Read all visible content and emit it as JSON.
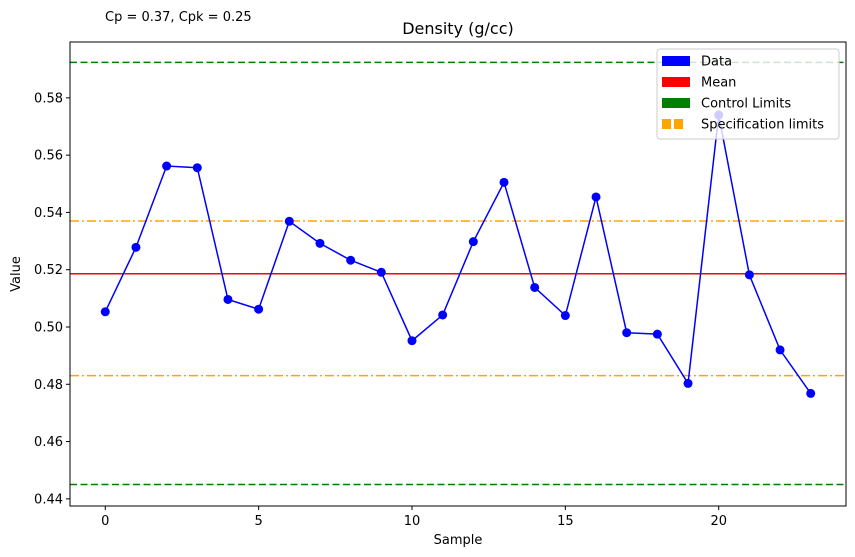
{
  "chart_data": {
    "type": "line",
    "title": "Density (g/cc)",
    "annotation": "Cp = 0.37, Cpk = 0.25",
    "xlabel": "Sample",
    "ylabel": "Value",
    "xlim": [
      -1.15,
      24.15
    ],
    "ylim": [
      0.4375,
      0.5995
    ],
    "xticks": [
      0,
      5,
      10,
      15,
      20
    ],
    "yticks": [
      0.44,
      0.46,
      0.48,
      0.5,
      0.52,
      0.54,
      0.56,
      0.58
    ],
    "ytick_labels": [
      "0.44",
      "0.46",
      "0.48",
      "0.50",
      "0.52",
      "0.54",
      "0.56",
      "0.58"
    ],
    "grid": false,
    "legend_position": "top-right",
    "x": [
      0,
      1,
      2,
      3,
      4,
      5,
      6,
      7,
      8,
      9,
      10,
      11,
      12,
      13,
      14,
      15,
      16,
      17,
      18,
      19,
      20,
      21,
      22,
      23
    ],
    "series": [
      {
        "name": "Data",
        "color": "#0000ff",
        "values": [
          0.5053,
          0.5278,
          0.5562,
          0.5556,
          0.5096,
          0.5062,
          0.5369,
          0.5292,
          0.5233,
          0.5191,
          0.4952,
          0.5042,
          0.5298,
          0.5505,
          0.5138,
          0.504,
          0.5454,
          0.498,
          0.4975,
          0.4803,
          0.574,
          0.5182,
          0.492,
          0.4768
        ]
      }
    ],
    "reference_lines": [
      {
        "name": "Mean",
        "value": 0.5186,
        "color": "#ff0000",
        "style": "solid"
      },
      {
        "name": "Control Limits",
        "value": 0.5924,
        "color": "#008000",
        "style": "dashed"
      },
      {
        "name": "Control Limits",
        "value": 0.445,
        "color": "#008000",
        "style": "dashed"
      },
      {
        "name": "Specification limits",
        "value": 0.537,
        "color": "#ffa500",
        "style": "dashdot"
      },
      {
        "name": "Specification limits",
        "value": 0.483,
        "color": "#ffa500",
        "style": "dashdot"
      }
    ],
    "legend": [
      {
        "label": "Data",
        "color": "#0000ff",
        "style": "solid"
      },
      {
        "label": "Mean",
        "color": "#ff0000",
        "style": "solid"
      },
      {
        "label": "Control Limits",
        "color": "#008000",
        "style": "solid"
      },
      {
        "label": "Specification limits",
        "color": "#ffa500",
        "style": "dashed"
      }
    ]
  }
}
